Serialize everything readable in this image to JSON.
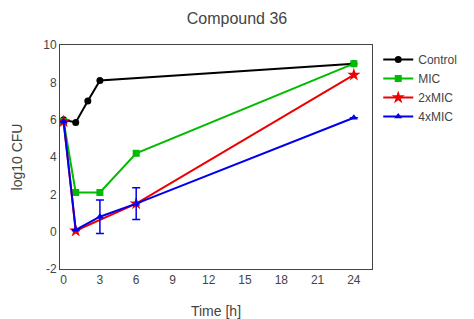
{
  "chart_data": {
    "type": "line",
    "title": "Compound 36",
    "xlabel": "Time [h]",
    "ylabel": "log10 CFU",
    "xlim": [
      -0.3,
      25.5
    ],
    "ylim": [
      -2,
      10
    ],
    "xticks": [
      0,
      3,
      6,
      9,
      12,
      15,
      18,
      21,
      24
    ],
    "yticks": [
      -2,
      0,
      2,
      4,
      6,
      8,
      10
    ],
    "grid": false,
    "legend": "right",
    "series": [
      {
        "name": "Control",
        "color": "#000000",
        "marker": "circle",
        "x": [
          0,
          1,
          2,
          3,
          24
        ],
        "values": [
          6.0,
          5.85,
          7.0,
          8.1,
          9.0
        ],
        "yerr": [
          null,
          null,
          null,
          null,
          null
        ]
      },
      {
        "name": "MIC",
        "color": "#00bb00",
        "marker": "square",
        "x": [
          0,
          1,
          3,
          6,
          24
        ],
        "values": [
          5.9,
          2.1,
          2.1,
          4.2,
          9.0
        ],
        "yerr": [
          null,
          null,
          null,
          null,
          null
        ]
      },
      {
        "name": "2xMIC",
        "color": "#ee0000",
        "marker": "star",
        "x": [
          0,
          1,
          6,
          24
        ],
        "values": [
          5.9,
          0.05,
          1.5,
          8.4
        ],
        "yerr": [
          null,
          null,
          null,
          null
        ]
      },
      {
        "name": "4xMIC",
        "color": "#0000ee",
        "marker": "triangle-up",
        "x": [
          0,
          1,
          3,
          6,
          24
        ],
        "values": [
          5.9,
          0.1,
          0.8,
          1.5,
          6.1
        ],
        "yerr": [
          null,
          null,
          0.9,
          0.85,
          null
        ]
      }
    ]
  }
}
